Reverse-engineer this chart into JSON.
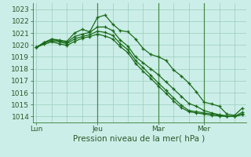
{
  "title": "Pression niveau de la mer( hPa )",
  "background_color": "#cceee8",
  "grid_color": "#99ccbb",
  "line_color": "#1a6b1a",
  "vline_color": "#4a8a4a",
  "ylim": [
    1013.5,
    1023.5
  ],
  "yticks": [
    1014,
    1015,
    1016,
    1017,
    1018,
    1019,
    1020,
    1021,
    1022,
    1023
  ],
  "xtick_labels": [
    "Lun",
    "Jeu",
    "Mar",
    "Mer"
  ],
  "xtick_positions": [
    0,
    8,
    16,
    22
  ],
  "total_points": 28,
  "lines": [
    [
      1019.8,
      1020.2,
      1020.5,
      1020.4,
      1020.3,
      1021.0,
      1021.3,
      1021.1,
      1022.3,
      1022.5,
      1021.75,
      1021.2,
      1021.1,
      1020.5,
      1019.7,
      1019.2,
      1019.0,
      1018.7,
      1017.9,
      1017.4,
      1016.8,
      1016.05,
      1015.2,
      1015.05,
      1014.85,
      1014.2,
      1014.1,
      1014.7
    ],
    [
      1019.8,
      1020.2,
      1020.45,
      1020.35,
      1020.2,
      1020.7,
      1020.9,
      1021.05,
      1021.5,
      1021.5,
      1021.2,
      1020.4,
      1019.9,
      1019.0,
      1018.5,
      1018.0,
      1017.5,
      1016.9,
      1016.3,
      1015.7,
      1015.1,
      1014.85,
      1014.5,
      1014.3,
      1014.15,
      1014.05,
      1014.0,
      1014.35
    ],
    [
      1019.8,
      1020.15,
      1020.35,
      1020.25,
      1020.1,
      1020.5,
      1020.7,
      1020.85,
      1021.15,
      1021.05,
      1020.8,
      1020.1,
      1019.6,
      1018.7,
      1018.1,
      1017.45,
      1016.8,
      1016.2,
      1015.55,
      1014.95,
      1014.5,
      1014.4,
      1014.3,
      1014.2,
      1014.1,
      1014.0,
      1014.0,
      1014.2
    ],
    [
      1019.8,
      1020.05,
      1020.25,
      1020.1,
      1019.95,
      1020.3,
      1020.55,
      1020.7,
      1020.9,
      1020.75,
      1020.5,
      1019.85,
      1019.35,
      1018.45,
      1017.8,
      1017.2,
      1016.55,
      1015.95,
      1015.3,
      1014.75,
      1014.4,
      1014.3,
      1014.2,
      1014.1,
      1014.05,
      1014.0,
      1014.0,
      1014.15
    ]
  ],
  "vline_positions": [
    8,
    16,
    22
  ],
  "xlabel_fontsize": 7.5,
  "tick_fontsize": 6.5
}
